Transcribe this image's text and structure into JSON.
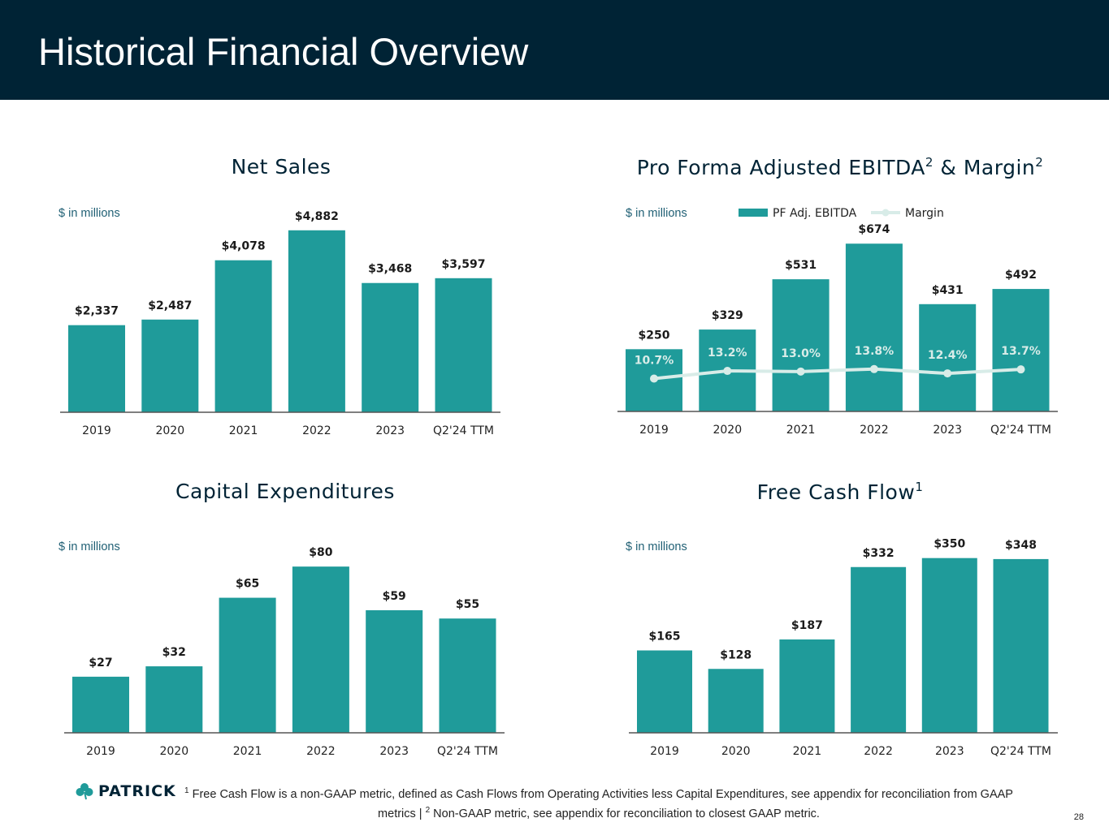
{
  "header": {
    "title": "Historical Financial Overview"
  },
  "colors": {
    "bar": "#1f9b9a",
    "margin_line": "#d8ece8",
    "navy": "#002335",
    "axis": "#555555"
  },
  "chart_data": [
    {
      "id": "net_sales",
      "type": "bar",
      "title": "Net Sales",
      "units_label": "$ in millions",
      "categories": [
        "2019",
        "2020",
        "2021",
        "2022",
        "2023",
        "Q2'24 TTM"
      ],
      "values": [
        2337,
        2487,
        4078,
        4882,
        3468,
        3597
      ],
      "labels": [
        "$2,337",
        "$2,487",
        "$4,078",
        "$4,882",
        "$3,468",
        "$3,597"
      ],
      "ylim": [
        0,
        5400
      ]
    },
    {
      "id": "ebitda",
      "type": "bar",
      "title": "Pro Forma Adjusted EBITDA",
      "title_mid": " & Margin",
      "title_sup": "2",
      "units_label": "$ in millions",
      "legend": [
        "PF Adj. EBITDA",
        "Margin"
      ],
      "categories": [
        "2019",
        "2020",
        "2021",
        "2022",
        "2023",
        "Q2'24 TTM"
      ],
      "values": [
        250,
        329,
        531,
        674,
        431,
        492
      ],
      "labels": [
        "$250",
        "$329",
        "$531",
        "$674",
        "$431",
        "$492"
      ],
      "ylim": [
        0,
        740
      ],
      "margin_series": {
        "name": "Margin",
        "values": [
          10.7,
          13.2,
          13.0,
          13.8,
          12.4,
          13.7
        ],
        "labels": [
          "10.7%",
          "13.2%",
          "13.0%",
          "13.8%",
          "12.4%",
          "13.7%"
        ],
        "ylim": [
          0,
          60
        ]
      }
    },
    {
      "id": "capex",
      "type": "bar",
      "title": "Capital Expenditures",
      "units_label": "$ in millions",
      "categories": [
        "2019",
        "2020",
        "2021",
        "2022",
        "2023",
        "Q2'24 TTM"
      ],
      "values": [
        27,
        32,
        65,
        80,
        59,
        55
      ],
      "labels": [
        "$27",
        "$32",
        "$65",
        "$80",
        "$59",
        "$55"
      ],
      "ylim": [
        0,
        91
      ]
    },
    {
      "id": "fcf",
      "type": "bar",
      "title": "Free Cash Flow",
      "title_sup": "1",
      "units_label": "$ in millions",
      "categories": [
        "2019",
        "2020",
        "2021",
        "2022",
        "2023",
        "Q2'24 TTM"
      ],
      "values": [
        165,
        128,
        187,
        332,
        350,
        348
      ],
      "labels": [
        "$165",
        "$128",
        "$187",
        "$332",
        "$350",
        "$348"
      ],
      "ylim": [
        0,
        395
      ]
    }
  ],
  "logo": {
    "text": "PATRICK"
  },
  "footnote": {
    "sup1": "1",
    "part1": " Free Cash Flow is a non-GAAP metric, defined as Cash Flows from Operating Activities less Capital Expenditures, see appendix for reconciliation from GAAP metrics | ",
    "sup2": "2",
    "part2": " Non-GAAP metric, see appendix for reconciliation to closest GAAP metric."
  },
  "page_number": "28"
}
